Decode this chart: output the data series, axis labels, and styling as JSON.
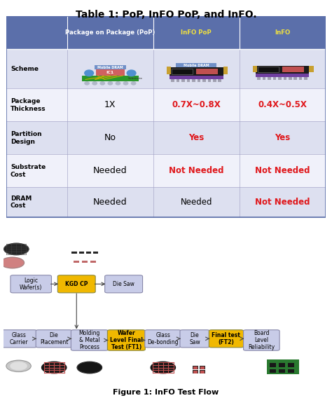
{
  "title": "Table 1: PoP, InFO PoP, and InFO.",
  "title_fontsize": 10,
  "header_labels": [
    "",
    "Package on Package (PoP)",
    "InFO PoP",
    "InFO"
  ],
  "header_bg": "#5b6faa",
  "header_text_colors": [
    "white",
    "white",
    "#f0e040",
    "#f0e040"
  ],
  "row_labels": [
    "Scheme",
    "Package\nThickness",
    "Partition\nDesign",
    "Substrate\nCost",
    "DRAM\nCost"
  ],
  "col1_values": [
    "",
    "1X",
    "No",
    "Needed",
    "Needed"
  ],
  "col2_values": [
    "",
    "0.7X~0.8X",
    "Yes",
    "Not Needed",
    "Needed"
  ],
  "col3_values": [
    "",
    "0.4X~0.5X",
    "Yes",
    "Not Needed",
    "Not Needed"
  ],
  "col1_colors": [
    "black",
    "black",
    "black",
    "black",
    "black"
  ],
  "col2_colors": [
    "black",
    "#e0181c",
    "#e0181c",
    "#e0181c",
    "black"
  ],
  "col3_colors": [
    "black",
    "#e0181c",
    "#e0181c",
    "#e0181c",
    "#e0181c"
  ],
  "col2_bold": [
    false,
    true,
    true,
    true,
    false
  ],
  "col3_bold": [
    false,
    true,
    true,
    true,
    true
  ],
  "row_bg_even": "#dde0f0",
  "row_bg_odd": "#f0f1fa",
  "figure_caption": "Figure 1: InFO Test Flow",
  "bg_color": "#ffffff"
}
